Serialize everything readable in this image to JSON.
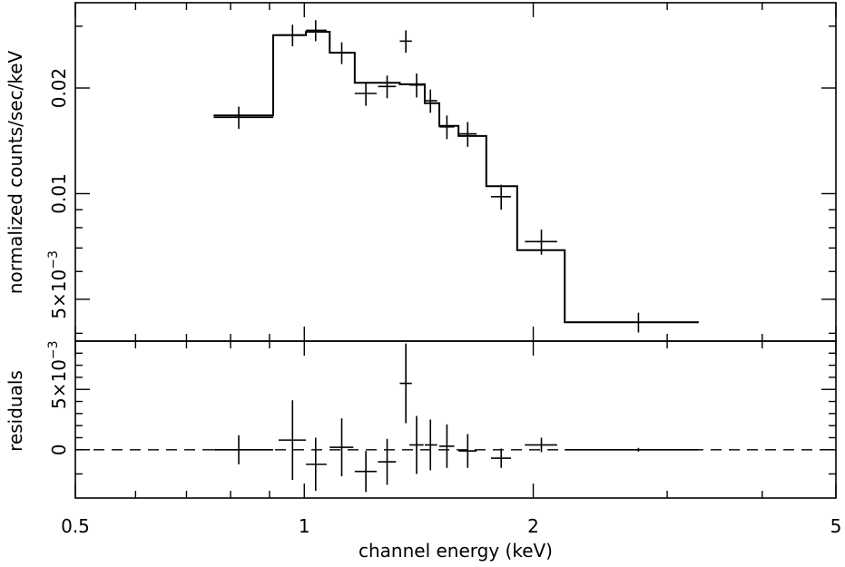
{
  "chart_data": [
    {
      "panel": "top",
      "type": "line",
      "xscale": "log",
      "yscale": "log",
      "xlim": [
        0.5,
        5
      ],
      "ylim": [
        0.0038,
        0.035
      ],
      "ylabel": "normalized counts/sec/keV",
      "yticks": [
        {
          "value": 0.02,
          "label": "0.02"
        },
        {
          "value": 0.01,
          "label": "0.01"
        },
        {
          "value": 0.005,
          "label": "5×10",
          "exp": "−3"
        }
      ],
      "data": [
        {
          "x": 0.82,
          "xlo": 0.76,
          "xhi": 0.91,
          "y": 0.0165,
          "yerr": 0.0012
        },
        {
          "x": 0.965,
          "xlo": 0.925,
          "xhi": 1.005,
          "y": 0.0283,
          "yerr": 0.002
        },
        {
          "x": 1.035,
          "xlo": 1.005,
          "xhi": 1.07,
          "y": 0.0292,
          "yerr": 0.002
        },
        {
          "x": 1.12,
          "xlo": 1.08,
          "xhi": 1.16,
          "y": 0.0252,
          "yerr": 0.0018
        },
        {
          "x": 1.205,
          "xlo": 1.165,
          "xhi": 1.245,
          "y": 0.0193,
          "yerr": 0.0015
        },
        {
          "x": 1.285,
          "xlo": 1.25,
          "xhi": 1.32,
          "y": 0.0202,
          "yerr": 0.0015
        },
        {
          "x": 1.36,
          "xlo": 1.335,
          "xhi": 1.385,
          "y": 0.0272,
          "yerr": 0.002
        },
        {
          "x": 1.405,
          "xlo": 1.375,
          "xhi": 1.435,
          "y": 0.0204,
          "yerr": 0.0016
        },
        {
          "x": 1.465,
          "xlo": 1.44,
          "xhi": 1.495,
          "y": 0.0184,
          "yerr": 0.0014
        },
        {
          "x": 1.54,
          "xlo": 1.505,
          "xhi": 1.575,
          "y": 0.0155,
          "yerr": 0.0012
        },
        {
          "x": 1.64,
          "xlo": 1.595,
          "xhi": 1.685,
          "y": 0.0148,
          "yerr": 0.0012
        },
        {
          "x": 1.815,
          "xlo": 1.76,
          "xhi": 1.87,
          "y": 0.0098,
          "yerr": 0.0008
        },
        {
          "x": 2.05,
          "xlo": 1.95,
          "xhi": 2.15,
          "y": 0.0073,
          "yerr": 0.0006
        },
        {
          "x": 2.75,
          "xlo": 2.2,
          "xhi": 3.3,
          "y": 0.0043,
          "yerr": 0.00028
        }
      ],
      "model": [
        {
          "x0": 0.76,
          "x1": 0.91,
          "y": 0.0167
        },
        {
          "x0": 0.91,
          "x1": 1.005,
          "y": 0.0283
        },
        {
          "x0": 1.005,
          "x1": 1.08,
          "y": 0.0289
        },
        {
          "x0": 1.08,
          "x1": 1.165,
          "y": 0.0252
        },
        {
          "x0": 1.165,
          "x1": 1.335,
          "y": 0.0207
        },
        {
          "x0": 1.335,
          "x1": 1.44,
          "y": 0.0205
        },
        {
          "x0": 1.44,
          "x1": 1.505,
          "y": 0.0181
        },
        {
          "x0": 1.505,
          "x1": 1.595,
          "y": 0.0156
        },
        {
          "x0": 1.595,
          "x1": 1.735,
          "y": 0.0146
        },
        {
          "x0": 1.735,
          "x1": 1.905,
          "y": 0.0105
        },
        {
          "x0": 1.905,
          "x1": 2.2,
          "y": 0.0069
        },
        {
          "x0": 2.2,
          "x1": 3.3,
          "y": 0.0043
        }
      ]
    },
    {
      "panel": "bottom",
      "type": "scatter",
      "xscale": "log",
      "xlim": [
        0.5,
        5
      ],
      "ylim": [
        -0.004,
        0.009
      ],
      "ylabel": "residuals",
      "xlabel": "channel energy (keV)",
      "yticks": [
        {
          "value": 0.005,
          "label": "5×10",
          "exp": "−3"
        },
        {
          "value": 0,
          "label": "0"
        }
      ],
      "xticks": [
        {
          "value": 0.5,
          "label": "0.5"
        },
        {
          "value": 1,
          "label": "1"
        },
        {
          "value": 2,
          "label": "2"
        },
        {
          "value": 5,
          "label": "5"
        }
      ],
      "zero_line": "dashed",
      "data": [
        {
          "x": 0.82,
          "xlo": 0.76,
          "xhi": 0.91,
          "y": 0.0,
          "yerr": 0.0012
        },
        {
          "x": 0.965,
          "xlo": 0.925,
          "xhi": 1.005,
          "y": 0.0008,
          "yerr": 0.0033
        },
        {
          "x": 1.035,
          "xlo": 1.005,
          "xhi": 1.07,
          "y": -0.0012,
          "yerr": 0.0022
        },
        {
          "x": 1.12,
          "xlo": 1.08,
          "xhi": 1.16,
          "y": 0.0002,
          "yerr": 0.0024
        },
        {
          "x": 1.205,
          "xlo": 1.165,
          "xhi": 1.245,
          "y": -0.0018,
          "yerr": 0.0017
        },
        {
          "x": 1.285,
          "xlo": 1.25,
          "xhi": 1.32,
          "y": -0.001,
          "yerr": 0.0019
        },
        {
          "x": 1.36,
          "xlo": 1.335,
          "xhi": 1.385,
          "y": 0.0055,
          "yerr": 0.0033
        },
        {
          "x": 1.405,
          "xlo": 1.375,
          "xhi": 1.435,
          "y": 0.0004,
          "yerr": 0.0024
        },
        {
          "x": 1.465,
          "xlo": 1.44,
          "xhi": 1.495,
          "y": 0.0004,
          "yerr": 0.0021
        },
        {
          "x": 1.54,
          "xlo": 1.505,
          "xhi": 1.575,
          "y": 0.0003,
          "yerr": 0.0018
        },
        {
          "x": 1.64,
          "xlo": 1.595,
          "xhi": 1.685,
          "y": -0.0001,
          "yerr": 0.0014
        },
        {
          "x": 1.815,
          "xlo": 1.76,
          "xhi": 1.87,
          "y": -0.0007,
          "yerr": 0.0008
        },
        {
          "x": 2.05,
          "xlo": 1.95,
          "xhi": 2.15,
          "y": 0.0004,
          "yerr": 0.0006
        },
        {
          "x": 2.75,
          "xlo": 2.2,
          "xhi": 3.3,
          "y": 0.0,
          "yerr": 0.00015
        }
      ]
    }
  ]
}
